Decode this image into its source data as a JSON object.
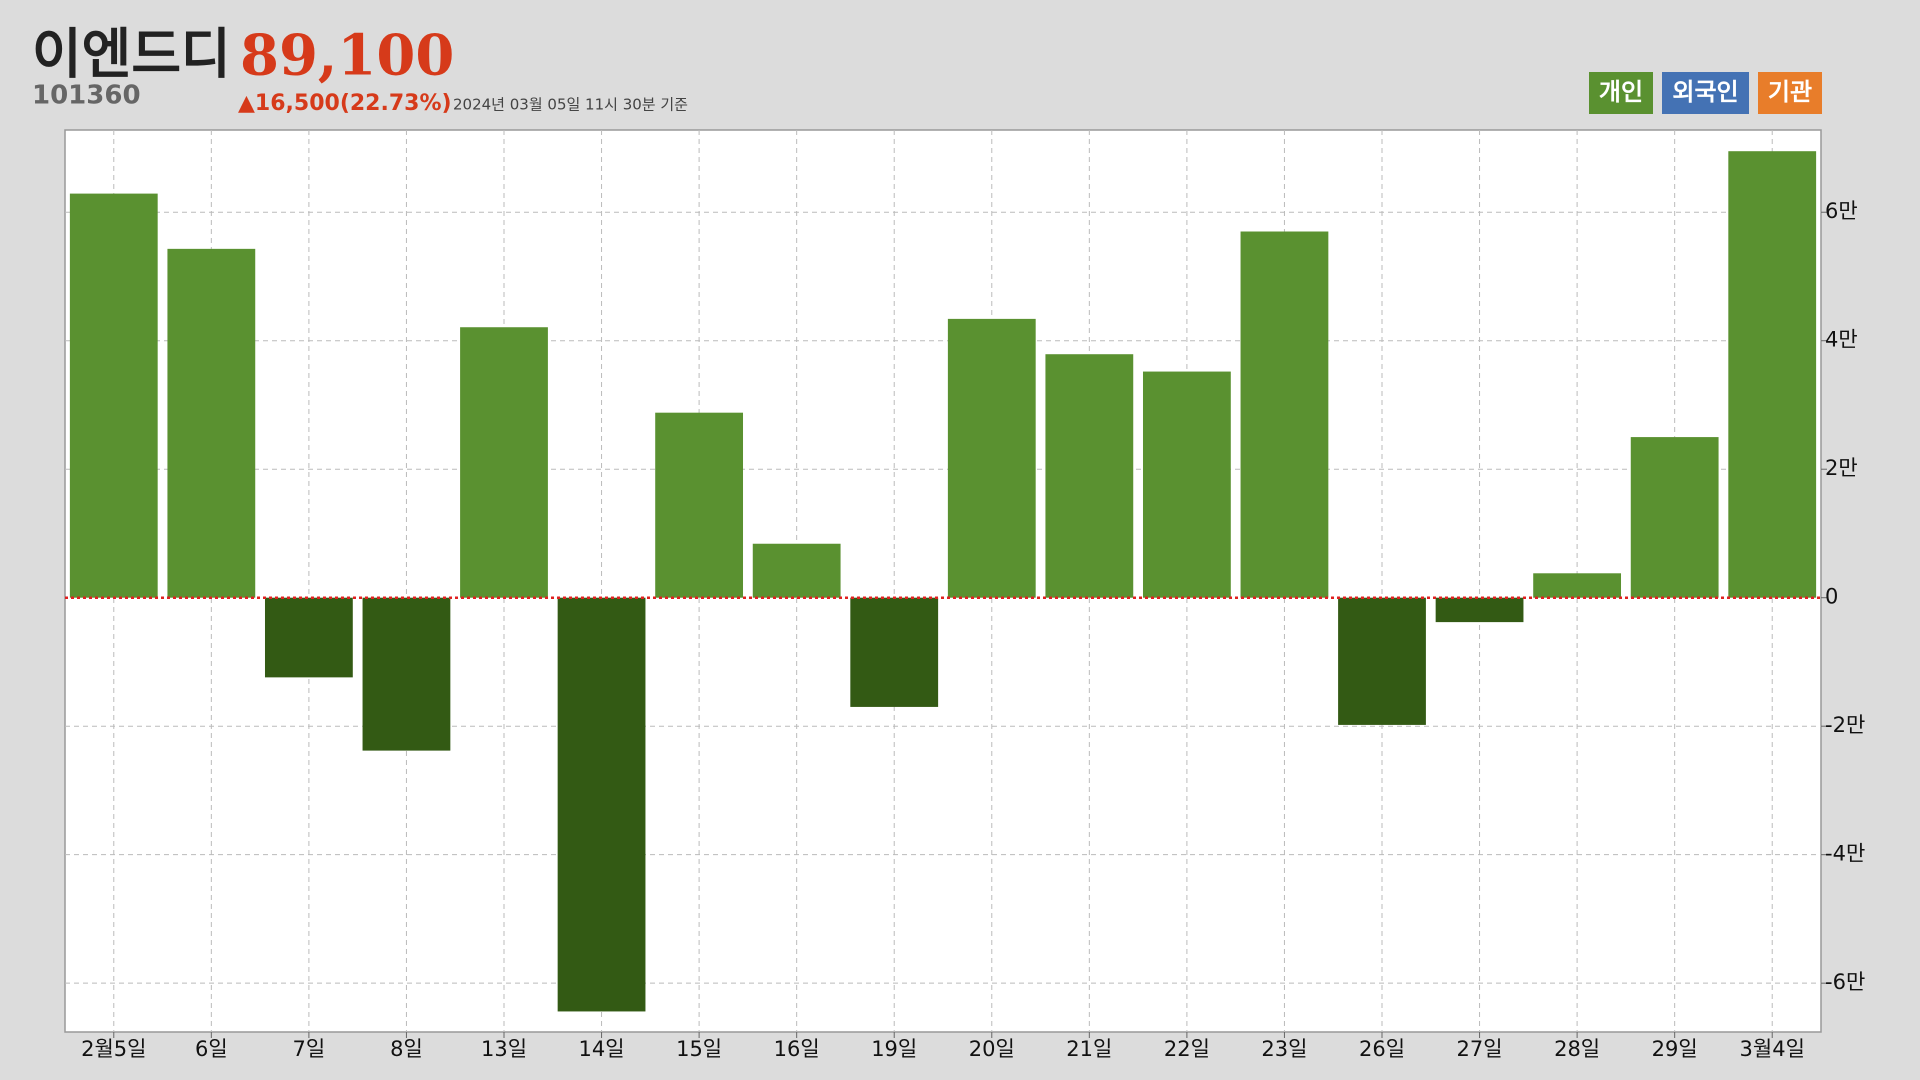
{
  "header": {
    "title": "이엔드디",
    "price": "89,100",
    "code": "101360",
    "change": "▲16,500(22.73%)",
    "timestamp": "2024년 03월 05일 11시 30분 기준"
  },
  "chart_data": {
    "type": "bar",
    "categories": [
      "2월5일",
      "6일",
      "7일",
      "8일",
      "13일",
      "14일",
      "15일",
      "16일",
      "19일",
      "20일",
      "21일",
      "22일",
      "23일",
      "26일",
      "27일",
      "28일",
      "29일",
      "3월4일"
    ],
    "series": [
      {
        "color": "#5a9130",
        "negative_color": "#335a14",
        "values": [
          62900,
          54300,
          -12400,
          -23800,
          42100,
          -64400,
          28800,
          8400,
          -17000,
          43400,
          37900,
          35200,
          57000,
          -19800,
          -3800,
          3800,
          25000,
          69500
        ]
      }
    ],
    "legend": [
      {
        "name": "개인",
        "color": "#5a9130"
      },
      {
        "name": "외국인",
        "color": "#4472b4"
      },
      {
        "name": "기관",
        "color": "#e87d2a"
      }
    ],
    "ylim": [
      -67600,
      72800
    ],
    "yticks": [
      {
        "value": -60000,
        "label": "-6만"
      },
      {
        "value": -40000,
        "label": "-4만"
      },
      {
        "value": -20000,
        "label": "-2만"
      },
      0,
      {
        "value": 20000,
        "label": "2만"
      },
      {
        "value": 40000,
        "label": "4만"
      },
      {
        "value": 60000,
        "label": "6만"
      }
    ],
    "grid": true,
    "zero_line_color": "#e02020"
  }
}
